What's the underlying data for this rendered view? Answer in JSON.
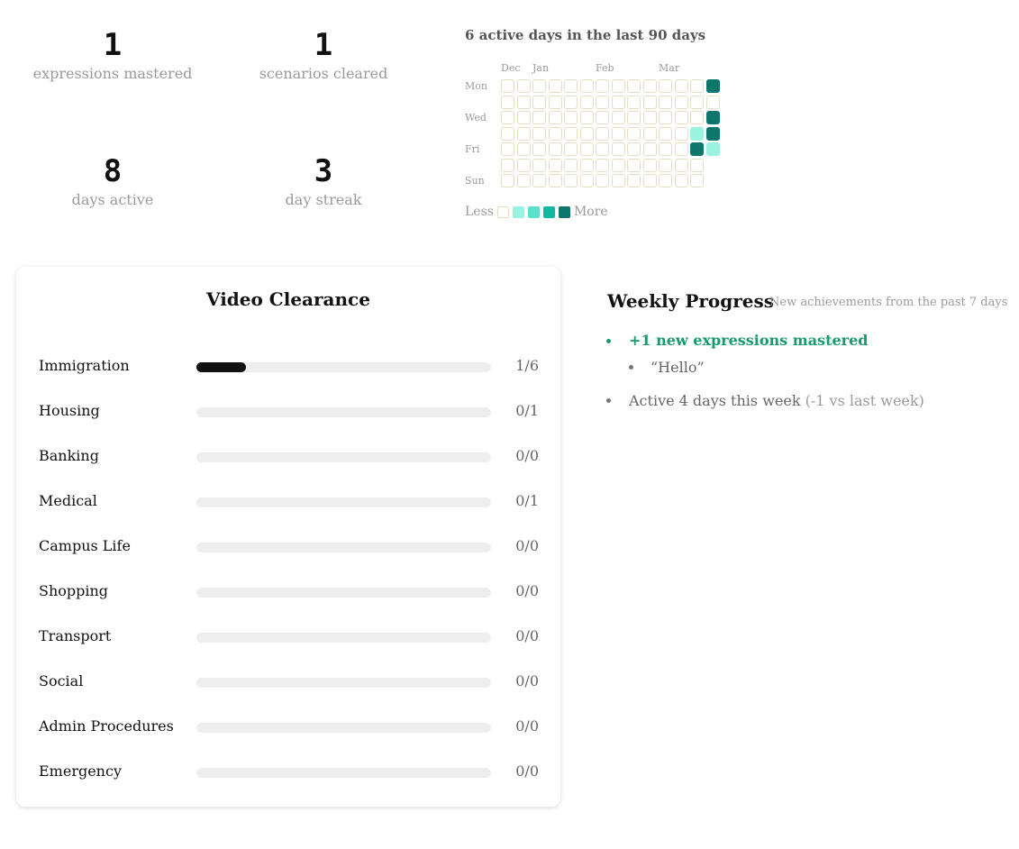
{
  "stats": [
    {
      "value": "1",
      "label": "expressions mastered"
    },
    {
      "value": "1",
      "label": "scenarios cleared"
    },
    {
      "value": "8",
      "label": "days active"
    },
    {
      "value": "3",
      "label": "day streak"
    }
  ],
  "heatmap": {
    "title": "6 active days in the last 90 days",
    "months": [
      {
        "label": "Dec",
        "col": 0
      },
      {
        "label": "Jan",
        "col": 2
      },
      {
        "label": "Feb",
        "col": 6
      },
      {
        "label": "Mar",
        "col": 10
      }
    ],
    "day_labels": [
      {
        "label": "Mon",
        "row": 0
      },
      {
        "label": "Wed",
        "row": 2
      },
      {
        "label": "Fri",
        "row": 4
      },
      {
        "label": "Sun",
        "row": 6
      }
    ],
    "columns": [
      [
        0,
        0,
        0,
        0,
        0,
        0,
        0
      ],
      [
        0,
        0,
        0,
        0,
        0,
        0,
        0
      ],
      [
        0,
        0,
        0,
        0,
        0,
        0,
        0
      ],
      [
        0,
        0,
        0,
        0,
        0,
        0,
        0
      ],
      [
        0,
        0,
        0,
        0,
        0,
        0,
        0
      ],
      [
        0,
        0,
        0,
        0,
        0,
        0,
        0
      ],
      [
        0,
        0,
        0,
        0,
        0,
        0,
        0
      ],
      [
        0,
        0,
        0,
        0,
        0,
        0,
        0
      ],
      [
        0,
        0,
        0,
        0,
        0,
        0,
        0
      ],
      [
        0,
        0,
        0,
        0,
        0,
        0,
        0
      ],
      [
        0,
        0,
        0,
        0,
        0,
        0,
        0
      ],
      [
        0,
        0,
        0,
        0,
        0,
        0,
        0
      ],
      [
        0,
        0,
        0,
        1,
        4,
        0,
        0
      ],
      [
        4,
        0,
        4,
        4,
        1
      ]
    ],
    "level_colors": [
      "#ffffff",
      "#9af2e0",
      "#5ce0cc",
      "#14b8a0",
      "#0f766e"
    ],
    "legend_less": "Less",
    "legend_more": "More"
  },
  "clearance": {
    "title": "Video Clearance",
    "rows": [
      {
        "name": "Immigration",
        "done": 1,
        "total": 6,
        "label": "1/6"
      },
      {
        "name": "Housing",
        "done": 0,
        "total": 1,
        "label": "0/1"
      },
      {
        "name": "Banking",
        "done": 0,
        "total": 0,
        "label": "0/0"
      },
      {
        "name": "Medical",
        "done": 0,
        "total": 1,
        "label": "0/1"
      },
      {
        "name": "Campus Life",
        "done": 0,
        "total": 0,
        "label": "0/0"
      },
      {
        "name": "Shopping",
        "done": 0,
        "total": 0,
        "label": "0/0"
      },
      {
        "name": "Transport",
        "done": 0,
        "total": 0,
        "label": "0/0"
      },
      {
        "name": "Social",
        "done": 0,
        "total": 0,
        "label": "0/0"
      },
      {
        "name": "Admin Procedures",
        "done": 0,
        "total": 0,
        "label": "0/0"
      },
      {
        "name": "Emergency",
        "done": 0,
        "total": 0,
        "label": "0/0"
      }
    ]
  },
  "weekly": {
    "title": "Weekly Progress",
    "subtitle": "New achievements from the past 7 days",
    "mastered": "+1 new expressions mastered",
    "expression": "“Hello”",
    "active": "Active 4 days this week",
    "active_delta": "(-1 vs last week)",
    "accent": "#179a6c"
  }
}
